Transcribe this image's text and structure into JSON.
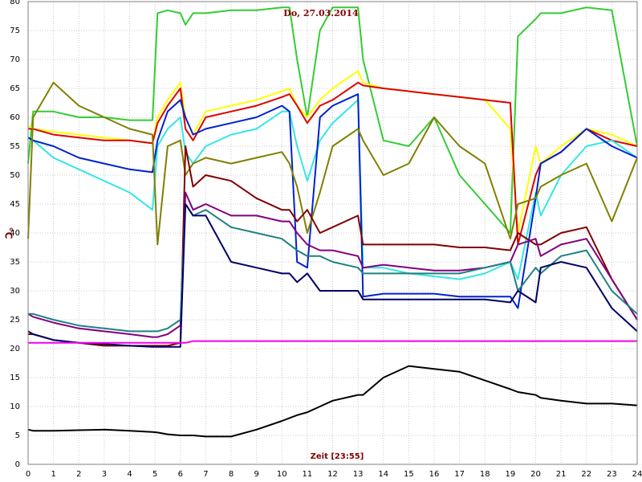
{
  "chart_data": {
    "type": "line",
    "title": "Do, 27.03.2014",
    "x_label": "Zeit [23:55]",
    "y_label": "°C",
    "x": [
      0,
      0.2,
      1,
      2,
      3,
      4,
      4.9,
      5.1,
      5.5,
      6,
      6.2,
      6.5,
      7,
      8,
      9,
      10,
      10.3,
      10.6,
      11,
      11.5,
      12,
      13,
      13.2,
      14,
      15,
      16,
      17,
      18,
      19,
      19.3,
      20,
      20.2,
      21,
      22,
      23,
      24
    ],
    "series": [
      {
        "color": "#33cc33",
        "values": [
          52,
          61,
          61,
          60,
          60,
          59.5,
          59.5,
          78,
          78.5,
          78,
          76,
          78,
          78,
          78.5,
          78.5,
          79,
          79,
          70,
          60,
          75,
          79,
          79,
          70,
          56,
          55,
          60,
          50,
          45,
          40,
          74,
          77,
          78,
          78,
          79,
          78.5,
          55
        ]
      },
      {
        "color": "#ffff00",
        "values": [
          58.5,
          58,
          57.5,
          57,
          56.5,
          56,
          55.5,
          60,
          63,
          66,
          60,
          57,
          61,
          62,
          63,
          64.5,
          65,
          62,
          60,
          63,
          65,
          68,
          66,
          65,
          64.5,
          64,
          63.5,
          63,
          58,
          40,
          55,
          52,
          55,
          58,
          57,
          55
        ]
      },
      {
        "color": "#dd0000",
        "values": [
          58,
          58,
          57,
          56.5,
          56,
          56,
          55.5,
          59,
          62,
          65,
          58,
          56,
          60,
          61,
          62,
          63.5,
          64,
          62,
          59,
          62,
          63,
          66,
          65.5,
          65,
          64.5,
          64,
          63.5,
          63,
          62.5,
          38,
          50,
          52,
          54,
          58,
          56,
          55
        ]
      },
      {
        "color": "#33e6e6",
        "values": [
          56.5,
          56,
          53,
          51,
          49,
          47,
          44,
          55,
          58,
          60,
          54,
          52,
          55,
          57,
          58,
          61,
          61,
          55,
          49,
          56,
          59,
          63,
          34,
          34,
          33,
          32.5,
          32,
          33,
          35,
          32,
          47,
          43,
          50,
          55,
          56,
          53
        ]
      },
      {
        "color": "#0022cc",
        "values": [
          56.5,
          56,
          55,
          53,
          52,
          51,
          50.5,
          56,
          61,
          63,
          60,
          57,
          58,
          59,
          60,
          62,
          61,
          35,
          34,
          60,
          62,
          64,
          29,
          29.5,
          29.5,
          29.5,
          29,
          29,
          29,
          27,
          46,
          52,
          54,
          58,
          55,
          53
        ]
      },
      {
        "color": "#808000",
        "values": [
          39,
          60,
          66,
          62,
          60,
          58,
          57,
          38,
          55,
          56,
          50,
          52,
          53,
          52,
          53,
          54,
          52,
          48,
          40,
          47,
          55,
          58,
          56,
          50,
          52,
          60,
          55,
          52,
          39,
          45,
          46,
          48,
          50,
          52,
          42,
          53
        ]
      },
      {
        "color": "#800000",
        "values": [
          22.5,
          22.5,
          21.5,
          21,
          20.5,
          20.5,
          20.5,
          20.5,
          20.5,
          21,
          55,
          48,
          50,
          49,
          46,
          44,
          44,
          42,
          44,
          40,
          41,
          43,
          38,
          38,
          38,
          38,
          37.5,
          37.5,
          37,
          40,
          38,
          38,
          40,
          41,
          32,
          25
        ]
      },
      {
        "color": "#800080",
        "values": [
          26,
          25.5,
          24.5,
          23.5,
          23,
          22.5,
          22,
          22,
          22.5,
          24,
          47,
          44,
          45,
          43,
          43,
          42,
          42,
          40,
          38,
          37,
          37,
          36,
          34,
          34.5,
          34,
          33.5,
          33.5,
          34,
          35,
          38,
          39,
          36,
          38,
          39,
          32,
          25
        ]
      },
      {
        "color": "#208080",
        "values": [
          26,
          26,
          25,
          24,
          23.5,
          23,
          23,
          23,
          23.5,
          25,
          45,
          43,
          44,
          41,
          40,
          39,
          38,
          37,
          36,
          36,
          35,
          34,
          33,
          33,
          33,
          33,
          33,
          34,
          35,
          30,
          34,
          33,
          36,
          37,
          30,
          26
        ]
      },
      {
        "color": "#000066",
        "values": [
          23,
          22.5,
          21.5,
          21,
          20.8,
          20.5,
          20.3,
          20.3,
          20.3,
          20.3,
          45,
          43,
          43,
          35,
          34,
          33,
          33,
          31.5,
          33,
          30,
          30,
          30,
          28.5,
          28.5,
          28.5,
          28.5,
          28.5,
          28.5,
          28,
          30,
          28,
          34,
          35,
          34,
          27,
          23
        ]
      },
      {
        "color": "#ee00ee",
        "values": [
          21,
          21,
          21,
          21,
          21,
          21,
          21,
          21,
          21,
          21,
          21,
          21.3,
          21.3,
          21.3,
          21.3,
          21.3,
          21.3,
          21.3,
          21.3,
          21.3,
          21.3,
          21.3,
          21.3,
          21.3,
          21.3,
          21.3,
          21.3,
          21.3,
          21.3,
          21.3,
          21.3,
          21.3,
          21.3,
          21.3,
          21.3,
          21.3
        ]
      },
      {
        "color": "#000000",
        "values": [
          6,
          5.8,
          5.8,
          5.9,
          6,
          5.8,
          5.6,
          5.5,
          5.2,
          5,
          5,
          5,
          4.8,
          4.8,
          6,
          7.5,
          8,
          8.5,
          9,
          10,
          11,
          12,
          12,
          15,
          17,
          16.5,
          16,
          14.5,
          13,
          12.5,
          12,
          11.5,
          11,
          10.5,
          10.5,
          10.2
        ]
      }
    ],
    "xlim": [
      0,
      24
    ],
    "ylim": [
      0,
      80
    ],
    "xticks": [
      0,
      1,
      2,
      3,
      4,
      5,
      6,
      7,
      8,
      9,
      10,
      11,
      12,
      13,
      14,
      15,
      16,
      17,
      18,
      19,
      20,
      21,
      22,
      23,
      24
    ],
    "yticks": [
      0,
      5,
      10,
      15,
      20,
      25,
      30,
      35,
      40,
      45,
      50,
      55,
      60,
      65,
      70,
      75,
      80
    ],
    "grid": true
  }
}
